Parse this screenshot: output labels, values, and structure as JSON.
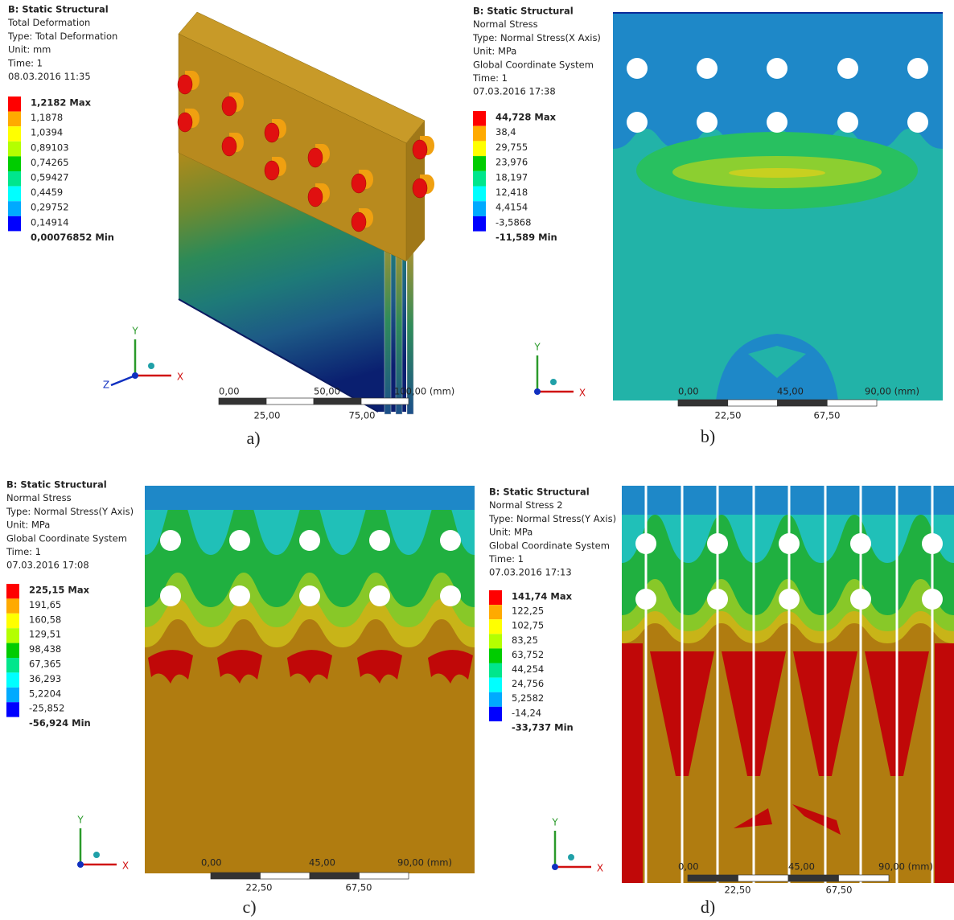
{
  "panels": [
    {
      "header": [
        "B: Static Structural",
        "Total Deformation",
        "Type: Total Deformation",
        "Unit: mm",
        "Time: 1",
        "08.03.2016 11:35"
      ],
      "legend": [
        "1,2182 Max",
        "1,1878",
        "1,0394",
        "0,89103",
        "0,74265",
        "0,59427",
        "0,4459",
        "0,29752",
        "0,14914",
        "0,00076852 Min"
      ],
      "scale_top": [
        "0,00",
        "50,00",
        "100,00 (mm)"
      ],
      "scale_bottom": [
        "25,00",
        "75,00"
      ],
      "axes": [
        "Y",
        "X",
        "Z"
      ],
      "caption": "a)"
    },
    {
      "header": [
        "B: Static Structural",
        "Normal Stress",
        "Type: Normal Stress(X Axis)",
        "Unit: MPa",
        "Global Coordinate System",
        "Time: 1",
        "07.03.2016 17:38"
      ],
      "legend": [
        "44,728 Max",
        "38,4",
        "29,755",
        "23,976",
        "18,197",
        "12,418",
        "4,4154",
        "-3,5868",
        "-11,589 Min"
      ],
      "scale_top": [
        "0,00",
        "45,00",
        "90,00 (mm)"
      ],
      "scale_bottom": [
        "22,50",
        "67,50"
      ],
      "axes": [
        "Y",
        "X"
      ],
      "caption": "b)"
    },
    {
      "header": [
        "B: Static Structural",
        "Normal Stress",
        "Type: Normal Stress(Y Axis)",
        "Unit: MPa",
        "Global Coordinate System",
        "Time: 1",
        "07.03.2016 17:08"
      ],
      "legend": [
        "225,15 Max",
        "191,65",
        "160,58",
        "129,51",
        "98,438",
        "67,365",
        "36,293",
        "5,2204",
        "-25,852",
        "-56,924 Min"
      ],
      "scale_top": [
        "0,00",
        "45,00",
        "90,00 (mm)"
      ],
      "scale_bottom": [
        "22,50",
        "67,50"
      ],
      "axes": [
        "Y",
        "X"
      ],
      "caption": "c)"
    },
    {
      "header": [
        "B: Static Structural",
        "Normal Stress 2",
        "Type: Normal Stress(Y Axis)",
        "Unit: MPa",
        "Global Coordinate System",
        "Time: 1",
        "07.03.2016 17:13"
      ],
      "legend": [
        "141,74 Max",
        "122,25",
        "102,75",
        "83,25",
        "63,752",
        "44,254",
        "24,756",
        "5,2582",
        "-14,24",
        "-33,737 Min"
      ],
      "scale_top": [
        "0,00",
        "45,00",
        "90,00 (mm)"
      ],
      "scale_bottom": [
        "22,50",
        "67,50"
      ],
      "axes": [
        "Y",
        "X"
      ],
      "caption": "d)"
    }
  ]
}
